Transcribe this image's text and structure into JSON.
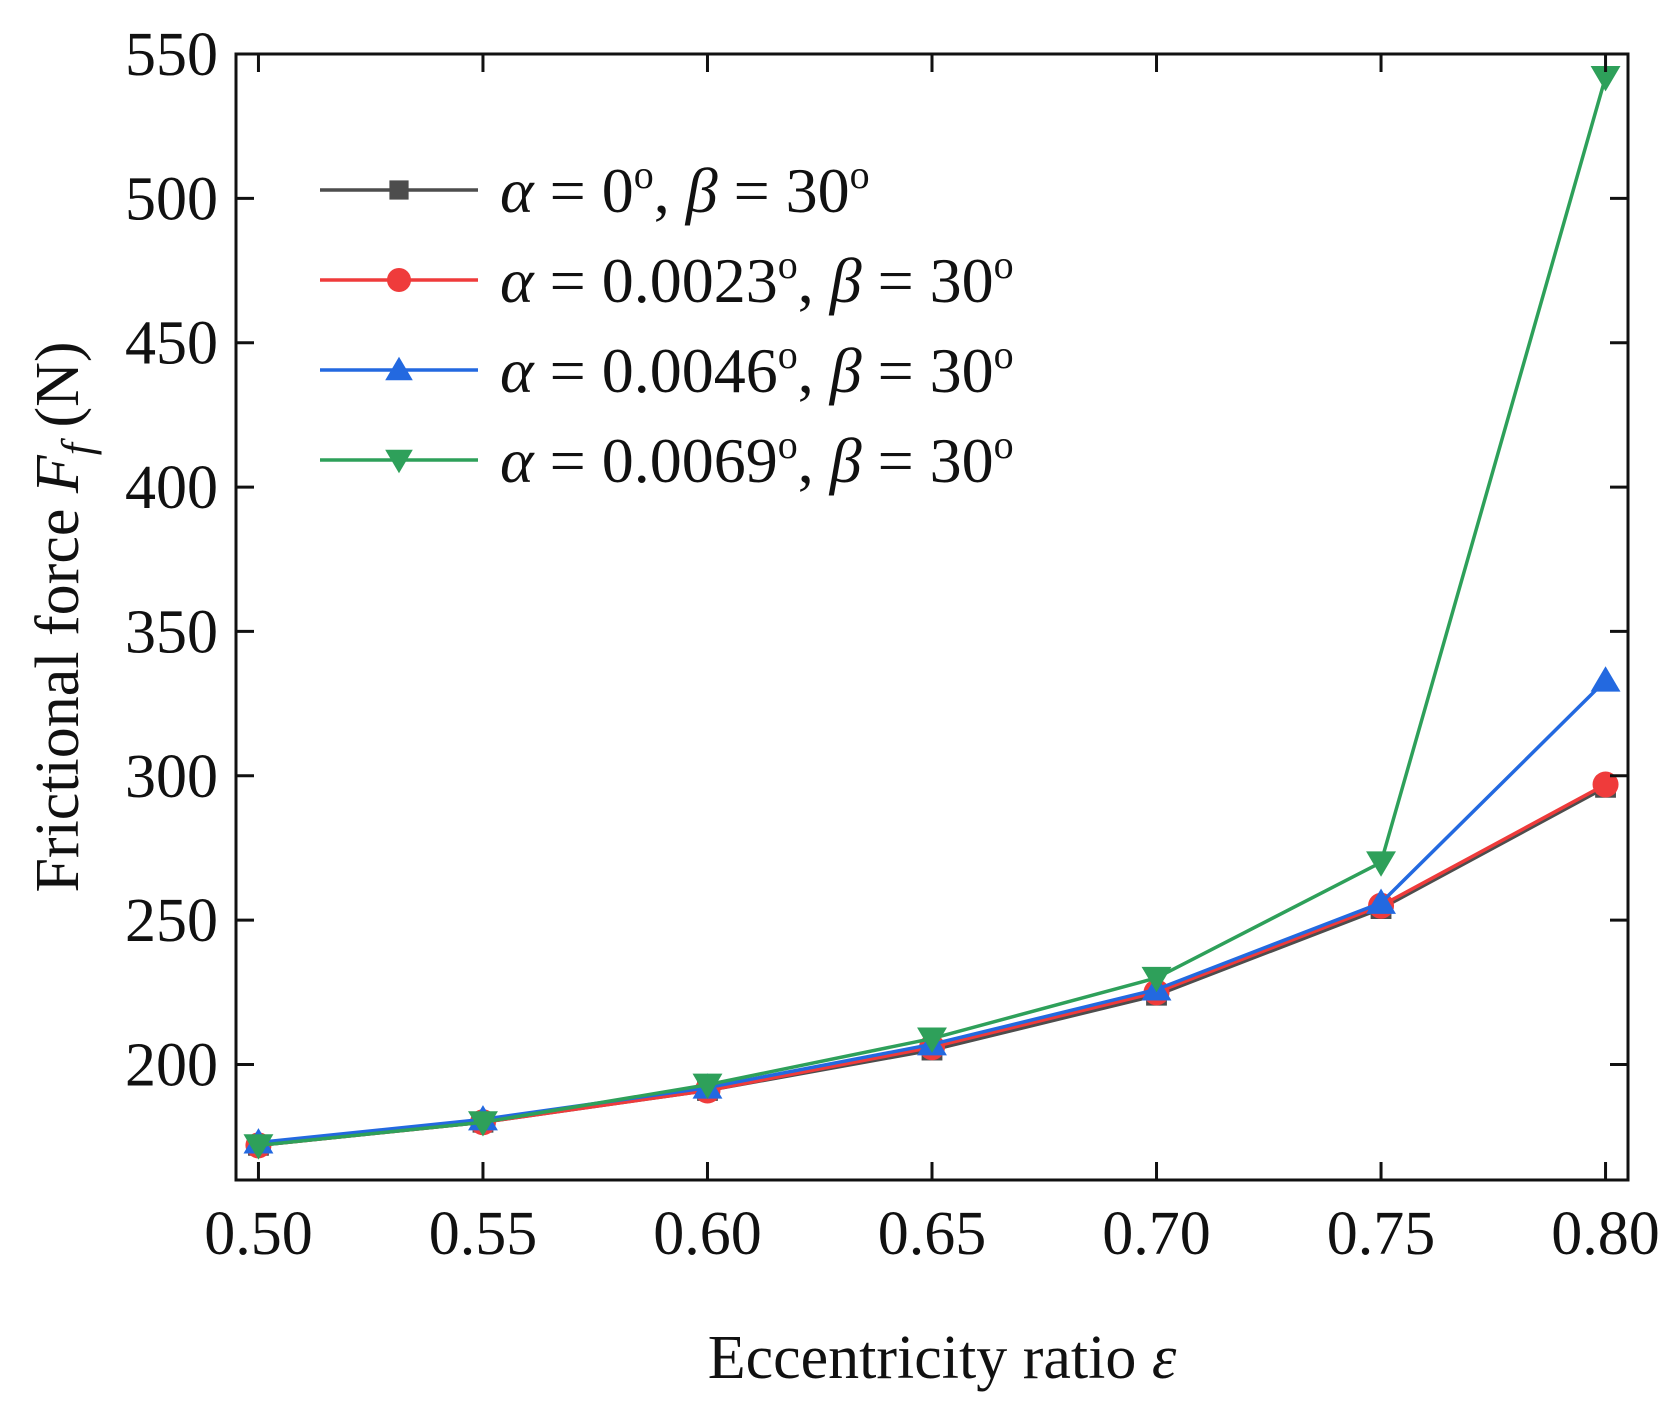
{
  "chart_data": {
    "type": "line",
    "title": "",
    "xlabel": "Eccentricity ratio",
    "xlabel_symbol": "ε",
    "ylabel": "Frictional force",
    "ylabel_symbol": "F",
    "ylabel_subscript": "f",
    "ylabel_unit": "(N)",
    "x": [
      0.5,
      0.55,
      0.6,
      0.65,
      0.7,
      0.75,
      0.8
    ],
    "x_tick_labels": [
      "0.50",
      "0.55",
      "0.60",
      "0.65",
      "0.70",
      "0.75",
      "0.80"
    ],
    "y_ticks": [
      200,
      250,
      300,
      350,
      400,
      450,
      500,
      550
    ],
    "y_tick_labels": [
      "200",
      "250",
      "300",
      "350",
      "400",
      "450",
      "500",
      "550"
    ],
    "xlim": [
      0.495,
      0.805
    ],
    "ylim": [
      160,
      550
    ],
    "grid": false,
    "legend_position": "top-left",
    "series": [
      {
        "name": "α = 0°, β = 30°",
        "alpha": "0",
        "beta": "30",
        "color": "#4d4d4d",
        "marker": "square",
        "values": [
          172,
          180,
          191,
          205,
          224,
          254,
          296
        ]
      },
      {
        "name": "α = 0.0023°, β = 30°",
        "alpha": "0.0023",
        "beta": "30",
        "color": "#ef3b3b",
        "marker": "circle",
        "values": [
          172,
          180,
          191,
          206,
          225,
          255,
          297
        ]
      },
      {
        "name": "α = 0.0046°, β = 30°",
        "alpha": "0.0046",
        "beta": "30",
        "color": "#2369e0",
        "marker": "triangle-up",
        "values": [
          173,
          181,
          192,
          207,
          226,
          256,
          333
        ]
      },
      {
        "name": "α = 0.0069°, β = 30°",
        "alpha": "0.0069",
        "beta": "30",
        "color": "#2ea05a",
        "marker": "triangle-down",
        "values": [
          172,
          180,
          193,
          209,
          230,
          270,
          542
        ]
      }
    ]
  }
}
